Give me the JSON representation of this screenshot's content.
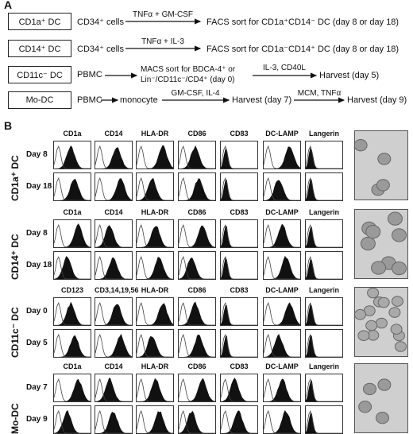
{
  "panel_a": {
    "letter": "A",
    "rows": [
      {
        "cell_type": "CD1a⁺ DC",
        "source": "CD34⁺ cells",
        "step1": "TNFα + GM-CSF",
        "result": "FACS sort for CD1a⁺CD14⁻ DC (day 8 or day 18)"
      },
      {
        "cell_type": "CD14⁺ DC",
        "source": "CD34⁺ cells",
        "step1": "TNFα + IL-3",
        "result": "FACS sort for CD1a⁻CD14⁺ DC (day 8 or day 18)"
      },
      {
        "cell_type": "CD11c⁻ DC",
        "source": "PBMC",
        "mid_line1": "MACS sort for BDCA-4⁺ or",
        "mid_line2": "Lin⁻/CD11c⁻/CD4⁺ (day 0)",
        "step2": "IL-3, CD40L",
        "result": "Harvest (day 5)"
      },
      {
        "cell_type": "Mo-DC",
        "source": "PBMC",
        "mid": "monocyte",
        "step1": "GM-CSF, IL-4",
        "mid2": "Harvest (day 7)",
        "step2": "MCM, TNFα",
        "result": "Harvest (day 9)"
      }
    ]
  },
  "panel_b": {
    "letter": "B",
    "groups": [
      {
        "label": "CD1a⁺ DC",
        "markers": [
          "CD1a",
          "CD14",
          "HLA-DR",
          "CD86",
          "CD83",
          "DC-LAMP",
          "Langerin"
        ],
        "days": [
          "Day 8",
          "Day 18"
        ],
        "photo": "dendritic-cell-photo"
      },
      {
        "label": "CD14⁺ DC",
        "markers": [
          "CD1a",
          "CD14",
          "HLA-DR",
          "CD86",
          "CD83",
          "DC-LAMP",
          "Langerin"
        ],
        "days": [
          "Day 8",
          "Day 18"
        ],
        "photo": "round-cells-photo"
      },
      {
        "label": "CD11c⁻ DC",
        "markers": [
          "CD123",
          "CD3,14,19,56",
          "HLA-DR",
          "CD86",
          "CD83",
          "DC-LAMP",
          "Langerin"
        ],
        "days": [
          "Day 0",
          "Day 5"
        ],
        "photo": "plasmacytoid-cells-photo"
      },
      {
        "label": "Mo-DC",
        "markers": [
          "CD1a",
          "CD14",
          "HLA-DR",
          "CD86",
          "CD83",
          "DC-LAMP",
          "Langerin"
        ],
        "days": [
          "Day 7",
          "Day 9"
        ],
        "photo": "monocyte-dc-photo"
      }
    ]
  }
}
